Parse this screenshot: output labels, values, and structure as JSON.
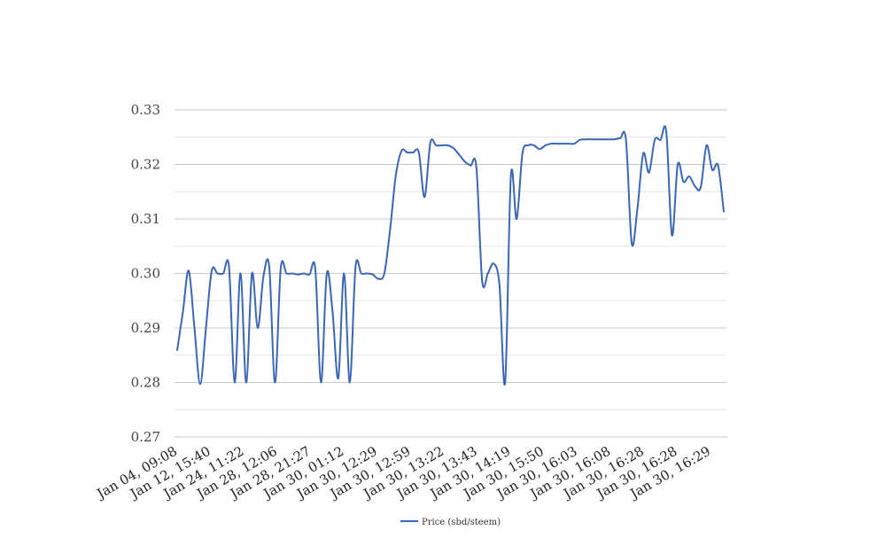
{
  "chart_data": {
    "type": "line",
    "title": "",
    "xlabel": "",
    "ylabel": "",
    "ylim": [
      0.27,
      0.33
    ],
    "y_ticks": [
      "0.27",
      "0.28",
      "0.29",
      "0.30",
      "0.31",
      "0.32",
      "0.33"
    ],
    "grid": true,
    "legend_position": "bottom",
    "x_tick_labels": [
      "Jan 04, 09:08",
      "Jan 12, 15:40",
      "Jan 24, 11:22",
      "Jan 28, 12:06",
      "Jan 28, 21:27",
      "Jan 30, 01:12",
      "Jan 30, 12:29",
      "Jan 30, 12:59",
      "Jan 30, 13:22",
      "Jan 30, 13:43",
      "Jan 30, 14:19",
      "Jan 30, 15:50",
      "Jan 30, 16:03",
      "Jan 30, 16:08",
      "Jan 30, 16:28",
      "Jan 30, 16:28",
      "Jan 30, 16:29"
    ],
    "series": [
      {
        "name": "Price (sbd/steem)",
        "color": "#3a66b5",
        "values": [
          0.2859,
          0.293,
          0.3005,
          0.29,
          0.2797,
          0.29,
          0.3005,
          0.3,
          0.3,
          0.3012,
          0.28,
          0.3,
          0.28,
          0.3,
          0.29,
          0.2995,
          0.3012,
          0.28,
          0.301,
          0.3,
          0.3,
          0.2998,
          0.3,
          0.2998,
          0.3008,
          0.28,
          0.3,
          0.293,
          0.2808,
          0.3,
          0.28,
          0.3012,
          0.3,
          0.3,
          0.2998,
          0.299,
          0.3,
          0.308,
          0.318,
          0.3225,
          0.3222,
          0.3222,
          0.3222,
          0.314,
          0.324,
          0.3235,
          0.3235,
          0.3235,
          0.323,
          0.3218,
          0.3205,
          0.3198,
          0.3195,
          0.2987,
          0.3,
          0.3018,
          0.298,
          0.28,
          0.318,
          0.31,
          0.322,
          0.3235,
          0.3235,
          0.3228,
          0.3235,
          0.3238,
          0.3238,
          0.3238,
          0.3238,
          0.3238,
          0.3245,
          0.3246,
          0.3246,
          0.3246,
          0.3246,
          0.3246,
          0.3246,
          0.3248,
          0.3245,
          0.3055,
          0.312,
          0.322,
          0.3185,
          0.3245,
          0.3245,
          0.326,
          0.307,
          0.32,
          0.3168,
          0.3178,
          0.316,
          0.3158,
          0.3235,
          0.319,
          0.3198,
          0.3113
        ]
      }
    ]
  }
}
